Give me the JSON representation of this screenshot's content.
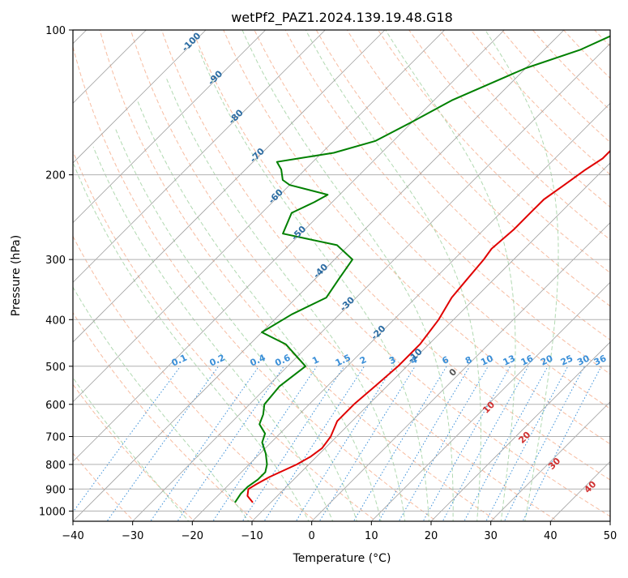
{
  "colors": {
    "background": "#ffffff",
    "axis": "#000000",
    "grid": "#b0b0b0",
    "isotherm": "#a0a0a0",
    "dry_adiabat": "#f4a582",
    "moist_adiabat": "#9ecf9e",
    "mixing_ratio": "#3a8fd8",
    "dewpoint": "#008000",
    "temperature": "#e00000",
    "temp_label": "#2b6ca3",
    "theta_label": "#d03030",
    "zero_label": "#555555"
  },
  "chart_data": {
    "type": "line",
    "subtype": "skew-t log-p sounding",
    "title": "wetPf2_PAZ1.2024.139.19.48.G18",
    "xlabel": "Temperature (°C)",
    "ylabel": "Pressure (hPa)",
    "xlim": [
      -40,
      50
    ],
    "ylim": [
      1050,
      100
    ],
    "y_scale": "log",
    "grid": true,
    "x_ticks": [
      -40,
      -30,
      -20,
      -10,
      0,
      10,
      20,
      30,
      40,
      50
    ],
    "x_tick_labels": [
      "−40",
      "−30",
      "−20",
      "−10",
      "0",
      "10",
      "20",
      "30",
      "40",
      "50"
    ],
    "y_ticks": [
      1000,
      900,
      800,
      700,
      600,
      500,
      400,
      300,
      200,
      100
    ],
    "y_tick_labels": [
      "1000",
      "900",
      "800",
      "700",
      "600",
      "500",
      "400",
      "300",
      "200",
      "100"
    ],
    "isotherm_labels": [
      {
        "text": "-100",
        "pressure": 107
      },
      {
        "text": "-90",
        "pressure": 127
      },
      {
        "text": "-80",
        "pressure": 153
      },
      {
        "text": "-70",
        "pressure": 184
      },
      {
        "text": "-60",
        "pressure": 224
      },
      {
        "text": "-50",
        "pressure": 267
      },
      {
        "text": "-40",
        "pressure": 320
      },
      {
        "text": "-30",
        "pressure": 375
      },
      {
        "text": "-20",
        "pressure": 430
      },
      {
        "text": "-10",
        "pressure": 480
      }
    ],
    "mixing_ratio_labels": [
      "0.1",
      "0.2",
      "0.4",
      "0.6",
      "1",
      "1.5",
      "2",
      "3",
      "4",
      "6",
      "8",
      "10",
      "13",
      "16",
      "20",
      "25",
      "30",
      "36"
    ],
    "theta_labels": [
      {
        "text": "0",
        "temperature": 24
      },
      {
        "text": "10",
        "temperature": 30
      },
      {
        "text": "20",
        "temperature": 36
      },
      {
        "text": "30",
        "temperature": 41
      },
      {
        "text": "40",
        "temperature": 47
      }
    ],
    "series": [
      {
        "id": "temperature",
        "points": [
          [
            960,
            -13
          ],
          [
            930,
            -15
          ],
          [
            900,
            -16
          ],
          [
            880,
            -15.5
          ],
          [
            850,
            -14.5
          ],
          [
            800,
            -12
          ],
          [
            770,
            -11
          ],
          [
            740,
            -10.5
          ],
          [
            700,
            -11
          ],
          [
            650,
            -12.5
          ],
          [
            600,
            -12.5
          ],
          [
            550,
            -12
          ],
          [
            500,
            -11.5
          ],
          [
            450,
            -11.5
          ],
          [
            400,
            -12.5
          ],
          [
            360,
            -14
          ],
          [
            330,
            -14.5
          ],
          [
            300,
            -15
          ],
          [
            285,
            -15.5
          ],
          [
            260,
            -15
          ],
          [
            240,
            -15
          ],
          [
            225,
            -15
          ],
          [
            210,
            -14
          ],
          [
            195,
            -13
          ],
          [
            185,
            -12
          ],
          [
            175,
            -12
          ],
          [
            160,
            -11
          ],
          [
            145,
            -9
          ],
          [
            130,
            -7
          ],
          [
            115,
            -5
          ],
          [
            100,
            -4
          ]
        ]
      },
      {
        "id": "dewpoint",
        "points": [
          [
            960,
            -16
          ],
          [
            920,
            -16.5
          ],
          [
            890,
            -16.5
          ],
          [
            860,
            -16
          ],
          [
            830,
            -16
          ],
          [
            800,
            -17
          ],
          [
            760,
            -19
          ],
          [
            720,
            -21.5
          ],
          [
            690,
            -22.5
          ],
          [
            660,
            -25
          ],
          [
            630,
            -26
          ],
          [
            600,
            -27.5
          ],
          [
            550,
            -28
          ],
          [
            500,
            -27
          ],
          [
            450,
            -34
          ],
          [
            425,
            -40
          ],
          [
            390,
            -38
          ],
          [
            360,
            -35
          ],
          [
            330,
            -36
          ],
          [
            300,
            -37
          ],
          [
            280,
            -42
          ],
          [
            265,
            -53
          ],
          [
            240,
            -55
          ],
          [
            228,
            -53
          ],
          [
            220,
            -52
          ],
          [
            210,
            -60
          ],
          [
            205,
            -62
          ],
          [
            195,
            -64
          ],
          [
            188,
            -66
          ],
          [
            185,
            -63
          ],
          [
            180,
            -58
          ],
          [
            170,
            -53
          ],
          [
            155,
            -50
          ],
          [
            140,
            -47
          ],
          [
            120,
            -40
          ],
          [
            110,
            -34
          ],
          [
            100,
            -30
          ]
        ]
      }
    ]
  }
}
